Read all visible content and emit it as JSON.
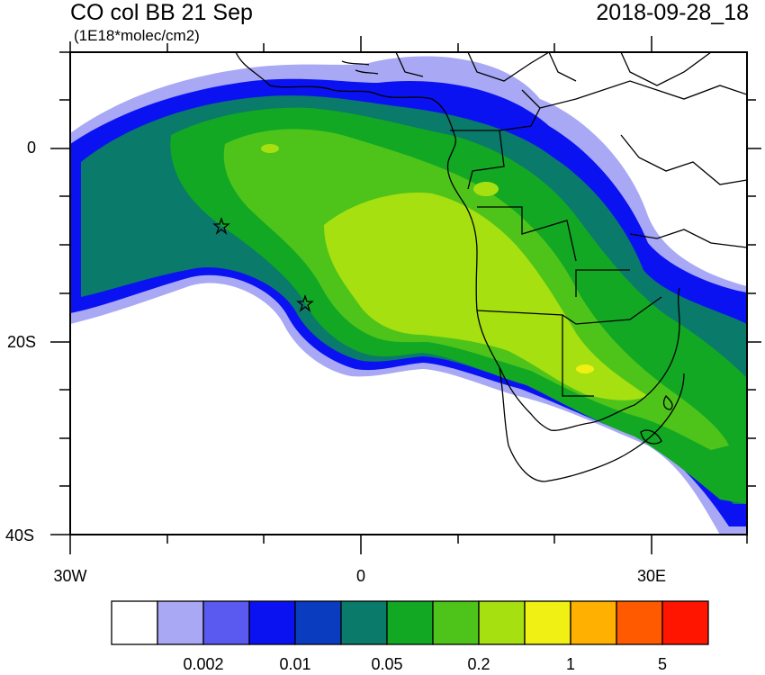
{
  "title": "CO col BB 21 Sep",
  "units": "(1E18*molec/cm2)",
  "date": "2018-09-28_18",
  "axes": {
    "lon_labels": [
      "30W",
      "0",
      "30E"
    ],
    "lat_labels": [
      "0",
      "20S",
      "40S"
    ]
  },
  "colorbar": {
    "colors": [
      "#ffffff",
      "#a8a8f5",
      "#5a5af0",
      "#0a12f2",
      "#0a3cbf",
      "#0a7a6a",
      "#12a824",
      "#4ec41a",
      "#a6e010",
      "#f0f014",
      "#ffb000",
      "#ff5a00",
      "#ff1500"
    ],
    "labels": [
      "0.002",
      "0.01",
      "0.05",
      "0.2",
      "1",
      "5"
    ]
  },
  "markers": [
    {
      "name": "star-marker-1",
      "lon": -15,
      "lat": -8
    },
    {
      "name": "star-marker-2",
      "lon": -6.5,
      "lat": -16
    }
  ]
}
